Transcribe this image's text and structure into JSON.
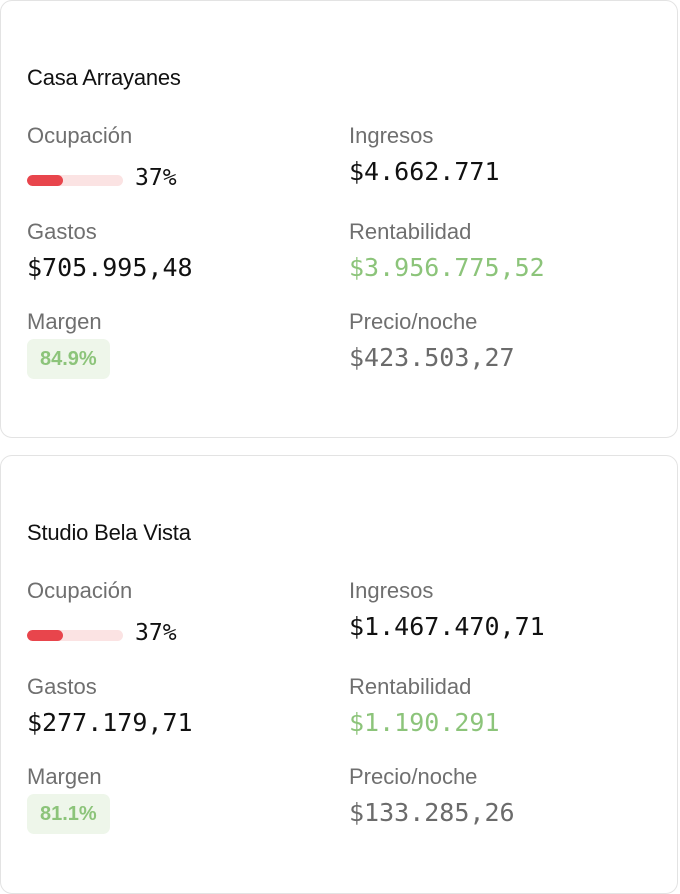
{
  "labels": {
    "occupancy": "Ocupación",
    "income": "Ingresos",
    "expenses": "Gastos",
    "profitability": "Rentabilidad",
    "margin": "Margen",
    "price_per_night": "Precio/noche"
  },
  "colors": {
    "occupancy_bar": "#e8454c",
    "occupancy_track": "#fbe3e3",
    "positive": "#8cc47a",
    "badge_bg": "#eef6ea"
  },
  "properties": [
    {
      "name": "Casa Arrayanes",
      "occupancy_pct": "37%",
      "occupancy_fraction": 0.37,
      "income": "$4.662.771",
      "expenses": "$705.995,48",
      "profitability": "$3.956.775,52",
      "margin": "84.9%",
      "price_per_night": "$423.503,27"
    },
    {
      "name": "Studio Bela Vista",
      "occupancy_pct": "37%",
      "occupancy_fraction": 0.37,
      "income": "$1.467.470,71",
      "expenses": "$277.179,71",
      "profitability": "$1.190.291",
      "margin": "81.1%",
      "price_per_night": "$133.285,26"
    }
  ]
}
